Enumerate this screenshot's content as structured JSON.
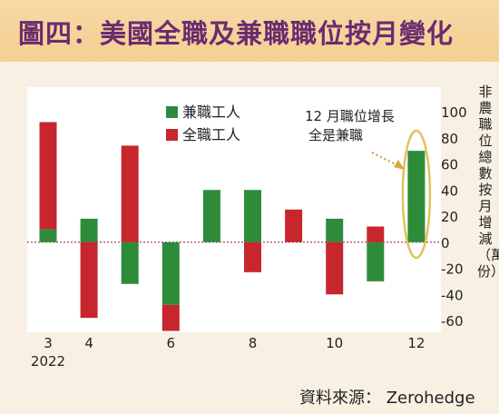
{
  "title": "圖四：美國全職及兼職職位按月變化",
  "source": "資料來源： Zerohedge",
  "chart_data": {
    "type": "bar",
    "stacked": true,
    "ylabel": "非農職位總數按月增減（萬份）",
    "ylim": [
      -60,
      120
    ],
    "yticks": [
      -60,
      -40,
      -20,
      0,
      20,
      40,
      60,
      80,
      100
    ],
    "categories": [
      "3",
      "4",
      "5",
      "6",
      "7",
      "8",
      "9",
      "10",
      "11",
      "12"
    ],
    "x_tick_labels": [
      "3",
      "4",
      "",
      "6",
      "",
      "8",
      "",
      "10",
      "",
      "12"
    ],
    "x_year_label": "2022",
    "series": [
      {
        "name": "兼職工人",
        "color": "#2e8b3a",
        "values": [
          10,
          18,
          -32,
          -48,
          40,
          40,
          0,
          18,
          -30,
          70
        ]
      },
      {
        "name": "全職工人",
        "color": "#c8262d",
        "values": [
          82,
          -58,
          74,
          -20,
          0,
          -23,
          25,
          -40,
          12,
          0
        ]
      }
    ],
    "legend_position": "top",
    "annotation": "12 月職位增長全是兼職"
  }
}
